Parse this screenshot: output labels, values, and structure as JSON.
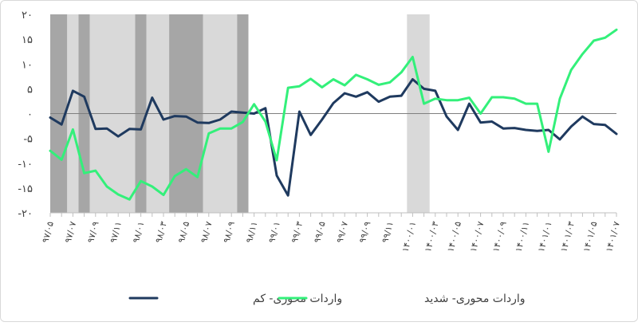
{
  "chart_data": {
    "type": "line",
    "title": "",
    "xlabel": "",
    "ylabel": "",
    "ylim": [
      -20,
      20
    ],
    "yticks": [
      {
        "value": 20,
        "label": "۲۰"
      },
      {
        "value": 15,
        "label": "۱۵"
      },
      {
        "value": 10,
        "label": "۱۰"
      },
      {
        "value": 5,
        "label": "۵"
      },
      {
        "value": 0,
        "label": "۰"
      },
      {
        "value": -5,
        "label": "-۵"
      },
      {
        "value": -10,
        "label": "-۱۰"
      },
      {
        "value": -15,
        "label": "-۱۵"
      },
      {
        "value": -20,
        "label": "-۲۰"
      }
    ],
    "n_points": 51,
    "xtick_labels": [
      {
        "index": 0,
        "label": "۹۷/۰۵"
      },
      {
        "index": 2,
        "label": "۹۷/۰۷"
      },
      {
        "index": 4,
        "label": "۹۷/۰۹"
      },
      {
        "index": 6,
        "label": "۹۷/۱۱"
      },
      {
        "index": 8,
        "label": "۹۸/۰۱"
      },
      {
        "index": 10,
        "label": "۹۸/۰۳"
      },
      {
        "index": 12,
        "label": "۹۸/۰۵"
      },
      {
        "index": 14,
        "label": "۹۸/۰۷"
      },
      {
        "index": 16,
        "label": "۹۸/۰۹"
      },
      {
        "index": 18,
        "label": "۹۸/۱۱"
      },
      {
        "index": 20,
        "label": "۹۹/۰۱"
      },
      {
        "index": 22,
        "label": "۹۹/۰۳"
      },
      {
        "index": 24,
        "label": "۹۹/۰۵"
      },
      {
        "index": 26,
        "label": "۹۹/۰۷"
      },
      {
        "index": 28,
        "label": "۹۹/۰۹"
      },
      {
        "index": 30,
        "label": "۹۹/۱۱"
      },
      {
        "index": 32,
        "label": "۱۴۰۰/۰۱"
      },
      {
        "index": 34,
        "label": "۱۴۰۰/۰۳"
      },
      {
        "index": 36,
        "label": "۱۴۰۰/۰۵"
      },
      {
        "index": 38,
        "label": "۱۴۰۰/۰۷"
      },
      {
        "index": 40,
        "label": "۱۴۰۰/۰۹"
      },
      {
        "index": 42,
        "label": "۱۴۰۰/۱۱"
      },
      {
        "index": 44,
        "label": "۱۴۰۱/۰۱"
      },
      {
        "index": 46,
        "label": "۱۴۰۱/۰۳"
      },
      {
        "index": 48,
        "label": "۱۴۰۱/۰۵"
      },
      {
        "index": 50,
        "label": "۱۴۰۱/۰۷"
      }
    ],
    "series": [
      {
        "name": "واردات محوری- کم",
        "color": "#1f3a5f",
        "values": [
          -0.8,
          -2.2,
          4.6,
          3.4,
          -3.1,
          -3.0,
          -4.6,
          -3.1,
          -3.2,
          3.2,
          -1.2,
          -0.5,
          -0.6,
          -1.8,
          -1.9,
          -1.2,
          0.4,
          0.2,
          0.0,
          1.1,
          -12.5,
          -16.5,
          0.4,
          -4.3,
          -1.2,
          2.1,
          4.1,
          3.4,
          4.3,
          2.4,
          3.4,
          3.6,
          6.9,
          5.0,
          4.6,
          -0.6,
          -3.3,
          2.0,
          -1.8,
          -1.6,
          -3.0,
          -2.9,
          -3.3,
          -3.5,
          -3.3,
          -5.2,
          -2.6,
          -0.6,
          -2.1,
          -2.3,
          -4.1
        ]
      },
      {
        "name": "واردات محوری- شدید",
        "color": "#33f07a",
        "values": [
          -7.5,
          -9.3,
          -3.2,
          -12.0,
          -11.5,
          -14.7,
          -16.3,
          -17.3,
          -13.6,
          -14.7,
          -16.4,
          -12.6,
          -11.2,
          -12.8,
          -4.0,
          -3.0,
          -3.0,
          -1.7,
          1.9,
          -1.6,
          -9.4,
          5.2,
          5.5,
          7.0,
          5.3,
          6.9,
          5.7,
          7.8,
          6.9,
          5.8,
          6.3,
          8.3,
          11.4,
          2.0,
          3.0,
          2.7,
          2.7,
          3.2,
          0.0,
          3.3,
          3.3,
          3.0,
          2.0,
          2.0,
          -7.7,
          3.0,
          8.8,
          12.0,
          14.7,
          15.3,
          16.9
        ]
      }
    ],
    "shaded_regions": [
      {
        "from": 0,
        "to": 1.5,
        "tone": "dark"
      },
      {
        "from": 1.5,
        "to": 2.5,
        "tone": "light"
      },
      {
        "from": 2.5,
        "to": 3.5,
        "tone": "dark"
      },
      {
        "from": 3.5,
        "to": 7.5,
        "tone": "light"
      },
      {
        "from": 7.5,
        "to": 8.5,
        "tone": "dark"
      },
      {
        "from": 8.5,
        "to": 10.5,
        "tone": "light"
      },
      {
        "from": 10.5,
        "to": 13.5,
        "tone": "dark"
      },
      {
        "from": 13.5,
        "to": 16.5,
        "tone": "light"
      },
      {
        "from": 16.5,
        "to": 17.5,
        "tone": "dark"
      },
      {
        "from": 31.5,
        "to": 33.5,
        "tone": "light"
      }
    ],
    "shade_colors": {
      "dark": "#a6a6a6",
      "light": "#d9d9d9"
    },
    "legend": {
      "position": "bottom"
    },
    "grid": false
  }
}
